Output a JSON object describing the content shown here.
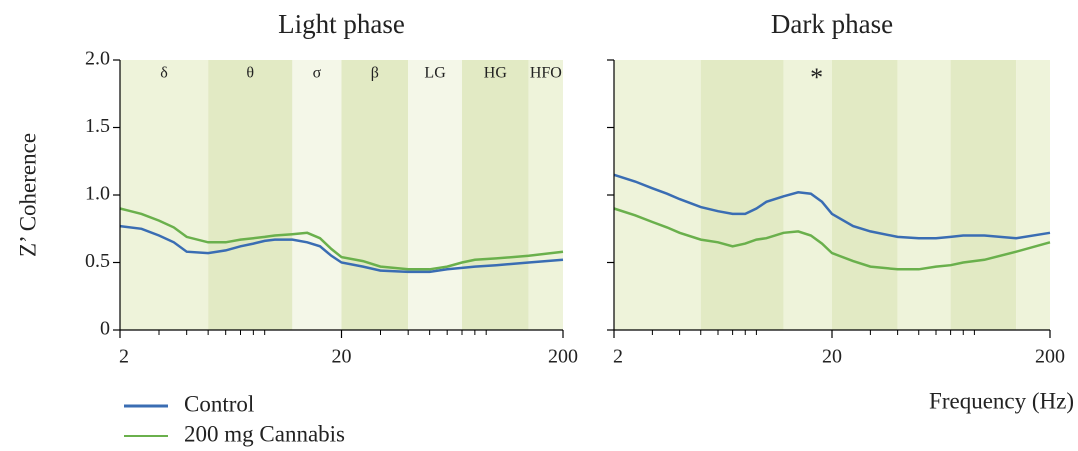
{
  "chart_data": [
    {
      "type": "line",
      "title": "Light phase",
      "ylabel": "Z’ Coherence",
      "log_x": true,
      "xlim": [
        2,
        200
      ],
      "xticks": [
        2,
        20,
        200
      ],
      "xminorticks": [
        3,
        4,
        5,
        6,
        7,
        8,
        9,
        30,
        40,
        50,
        60,
        70,
        80,
        90
      ],
      "ylim": [
        0,
        2
      ],
      "yticks": [
        {
          "value": 2,
          "label": "2.0"
        },
        1.5,
        {
          "value": 1,
          "label": "1.0"
        },
        0.5,
        0
      ],
      "ytick_labels": true,
      "bands": [
        {
          "label": "δ",
          "from": 2,
          "to": 5,
          "color": "#eef3da"
        },
        {
          "label": "θ",
          "from": 5,
          "to": 12,
          "color": "#e2eac4"
        },
        {
          "label": "σ",
          "from": 12,
          "to": 20,
          "color": "#f4f7e8"
        },
        {
          "label": "β",
          "from": 20,
          "to": 40,
          "color": "#e2eac4"
        },
        {
          "label": "LG",
          "from": 40,
          "to": 70,
          "color": "#f4f7e8"
        },
        {
          "label": "HG",
          "from": 70,
          "to": 140,
          "color": "#e2eac4"
        },
        {
          "label": "HFO",
          "from": 140,
          "to": 200,
          "color": "#eef3da"
        }
      ],
      "x": [
        2,
        2.5,
        3,
        3.5,
        4,
        5,
        6,
        7,
        8,
        9,
        10,
        12,
        14,
        16,
        18,
        20,
        25,
        30,
        40,
        50,
        60,
        70,
        80,
        100,
        140,
        200
      ],
      "series": [
        {
          "name": "Control",
          "color": "#3a6db3",
          "values": [
            0.77,
            0.75,
            0.7,
            0.65,
            0.58,
            0.57,
            0.59,
            0.62,
            0.64,
            0.66,
            0.67,
            0.67,
            0.65,
            0.62,
            0.55,
            0.5,
            0.47,
            0.44,
            0.43,
            0.43,
            0.45,
            0.46,
            0.47,
            0.48,
            0.5,
            0.52
          ]
        },
        {
          "name": "200 mg Cannabis",
          "color": "#6ab04c",
          "values": [
            0.9,
            0.86,
            0.81,
            0.76,
            0.69,
            0.65,
            0.65,
            0.67,
            0.68,
            0.69,
            0.7,
            0.71,
            0.72,
            0.68,
            0.6,
            0.54,
            0.51,
            0.47,
            0.45,
            0.45,
            0.47,
            0.5,
            0.52,
            0.53,
            0.55,
            0.58
          ]
        }
      ]
    },
    {
      "type": "line",
      "title": "Dark phase",
      "xlabel": "Frequency (Hz)",
      "log_x": true,
      "xlim": [
        2,
        200
      ],
      "xticks": [
        2,
        20,
        200
      ],
      "xminorticks": [
        3,
        4,
        5,
        6,
        7,
        8,
        9,
        30,
        40,
        50,
        60,
        70,
        80,
        90
      ],
      "ylim": [
        0,
        2
      ],
      "yticks": [
        0,
        0.5,
        1,
        1.5,
        2
      ],
      "ytick_labels": false,
      "bands": [
        {
          "from": 2,
          "to": 5,
          "color": "#eef3da"
        },
        {
          "from": 5,
          "to": 12,
          "color": "#e2eac4"
        },
        {
          "from": 12,
          "to": 20,
          "color": "#eef3da"
        },
        {
          "from": 20,
          "to": 40,
          "color": "#e2eac4"
        },
        {
          "from": 40,
          "to": 70,
          "color": "#eef3da"
        },
        {
          "from": 70,
          "to": 140,
          "color": "#e2eac4"
        },
        {
          "from": 140,
          "to": 200,
          "color": "#eef3da"
        }
      ],
      "annotations": [
        {
          "text": "*",
          "x": 17,
          "y": 1.85
        }
      ],
      "x": [
        2,
        2.5,
        3,
        3.5,
        4,
        5,
        6,
        7,
        8,
        9,
        10,
        12,
        14,
        16,
        18,
        20,
        25,
        30,
        40,
        50,
        60,
        70,
        80,
        100,
        140,
        200
      ],
      "series": [
        {
          "color": "#3a6db3",
          "values": [
            1.15,
            1.1,
            1.05,
            1.01,
            0.97,
            0.91,
            0.88,
            0.86,
            0.86,
            0.9,
            0.95,
            0.99,
            1.02,
            1.01,
            0.95,
            0.86,
            0.77,
            0.73,
            0.69,
            0.68,
            0.68,
            0.69,
            0.7,
            0.7,
            0.68,
            0.72
          ]
        },
        {
          "color": "#6ab04c",
          "values": [
            0.9,
            0.85,
            0.8,
            0.76,
            0.72,
            0.67,
            0.65,
            0.62,
            0.64,
            0.67,
            0.68,
            0.72,
            0.73,
            0.7,
            0.64,
            0.57,
            0.51,
            0.47,
            0.45,
            0.45,
            0.47,
            0.48,
            0.5,
            0.52,
            0.58,
            0.65
          ]
        }
      ]
    }
  ]
}
